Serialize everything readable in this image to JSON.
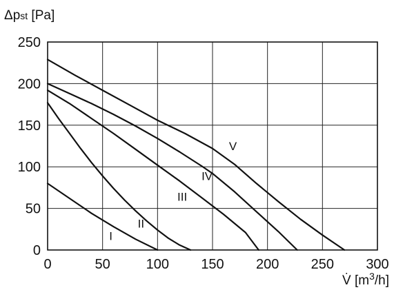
{
  "chart_data": {
    "type": "line",
    "ylabel_parts": {
      "symbol": "Δp",
      "subscript": "st",
      "unit": " [Pa]"
    },
    "xlabel_parts": {
      "symbol": "V̇",
      "unit_prefix": " [m",
      "unit_sup": "3",
      "unit_suffix": "/h]"
    },
    "xlim": [
      0,
      300
    ],
    "ylim": [
      0,
      250
    ],
    "x_ticks": [
      0,
      50,
      100,
      150,
      200,
      250,
      300
    ],
    "y_ticks": [
      0,
      50,
      100,
      150,
      200,
      250
    ],
    "grid": true,
    "series": [
      {
        "name": "I",
        "points": [
          [
            0,
            80
          ],
          [
            20,
            62
          ],
          [
            40,
            44
          ],
          [
            60,
            28
          ],
          [
            80,
            13
          ],
          [
            100,
            0
          ]
        ]
      },
      {
        "name": "II",
        "points": [
          [
            0,
            177
          ],
          [
            10,
            158
          ],
          [
            20,
            140
          ],
          [
            30,
            122
          ],
          [
            40,
            105
          ],
          [
            50,
            89
          ],
          [
            60,
            74
          ],
          [
            70,
            60
          ],
          [
            80,
            47
          ],
          [
            90,
            35
          ],
          [
            100,
            24
          ],
          [
            110,
            14
          ],
          [
            120,
            6
          ],
          [
            130,
            0
          ]
        ]
      },
      {
        "name": "III",
        "points": [
          [
            0,
            192
          ],
          [
            20,
            176
          ],
          [
            40,
            158
          ],
          [
            60,
            140
          ],
          [
            80,
            121
          ],
          [
            100,
            102
          ],
          [
            120,
            83
          ],
          [
            140,
            63
          ],
          [
            160,
            43
          ],
          [
            180,
            21
          ],
          [
            192,
            0
          ]
        ]
      },
      {
        "name": "IV",
        "points": [
          [
            0,
            200
          ],
          [
            20,
            188
          ],
          [
            40,
            176
          ],
          [
            60,
            163
          ],
          [
            80,
            149
          ],
          [
            100,
            134
          ],
          [
            120,
            118
          ],
          [
            140,
            101
          ],
          [
            150,
            92
          ],
          [
            170,
            70
          ],
          [
            190,
            46
          ],
          [
            210,
            22
          ],
          [
            227,
            0
          ]
        ]
      },
      {
        "name": "V",
        "points": [
          [
            0,
            229
          ],
          [
            25,
            210
          ],
          [
            50,
            192
          ],
          [
            75,
            174
          ],
          [
            100,
            156
          ],
          [
            125,
            140
          ],
          [
            150,
            122
          ],
          [
            170,
            103
          ],
          [
            190,
            80
          ],
          [
            210,
            58
          ],
          [
            230,
            37
          ],
          [
            250,
            18
          ],
          [
            270,
            0
          ]
        ]
      }
    ],
    "curve_labels": [
      {
        "text": "I",
        "x": 56,
        "y": 12
      },
      {
        "text": "II",
        "x": 82,
        "y": 27
      },
      {
        "text": "III",
        "x": 118,
        "y": 59
      },
      {
        "text": "IV",
        "x": 140,
        "y": 84
      },
      {
        "text": "V",
        "x": 165,
        "y": 120
      }
    ]
  }
}
